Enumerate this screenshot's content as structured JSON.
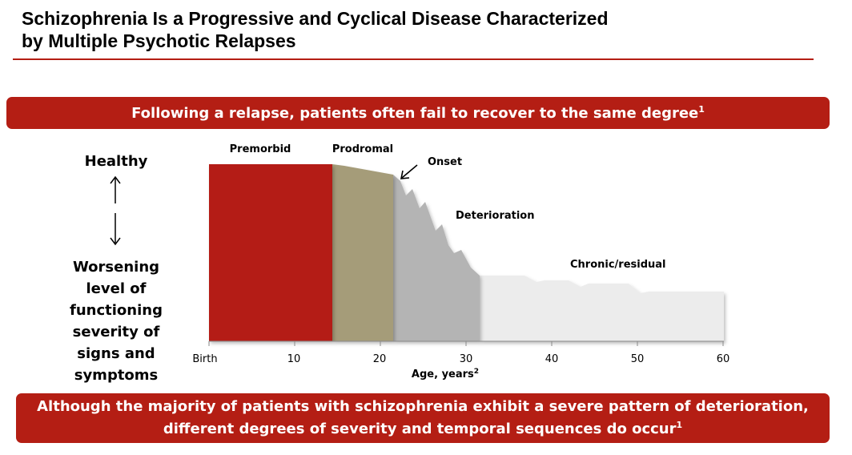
{
  "title": {
    "line1": "Schizophrenia Is a Progressive and Cyclical Disease Characterized",
    "line2": "by Multiple Psychotic Relapses"
  },
  "banner_top": {
    "text": "Following a relapse, patients often fail to recover to the same degree",
    "sup": "1"
  },
  "side_labels": {
    "healthy": "Healthy",
    "worsening_lines": [
      "Worsening",
      "level of",
      "functioning",
      "severity of",
      "signs and",
      "symptoms"
    ]
  },
  "phases": {
    "premorbid": "Premorbid",
    "prodromal": "Prodromal",
    "onset": "Onset",
    "deterioration": "Deterioration",
    "chronic": "Chronic/residual"
  },
  "axis": {
    "ticks": [
      "Birth",
      "10",
      "20",
      "30",
      "40",
      "50",
      "60"
    ],
    "title": "Age, years",
    "title_sup": "2"
  },
  "banner_bottom": {
    "line1": "Although the majority of patients with schizophrenia exhibit a severe pattern of deterioration,",
    "line2": "different degrees of severity and temporal sequences do occur",
    "sup": "1"
  },
  "colors": {
    "accent": "#b41e14",
    "premorbid": "#b41e14",
    "prodromal": "#a59c79",
    "deterioration": "#b4b4b4",
    "chronic": "#ececec"
  }
}
